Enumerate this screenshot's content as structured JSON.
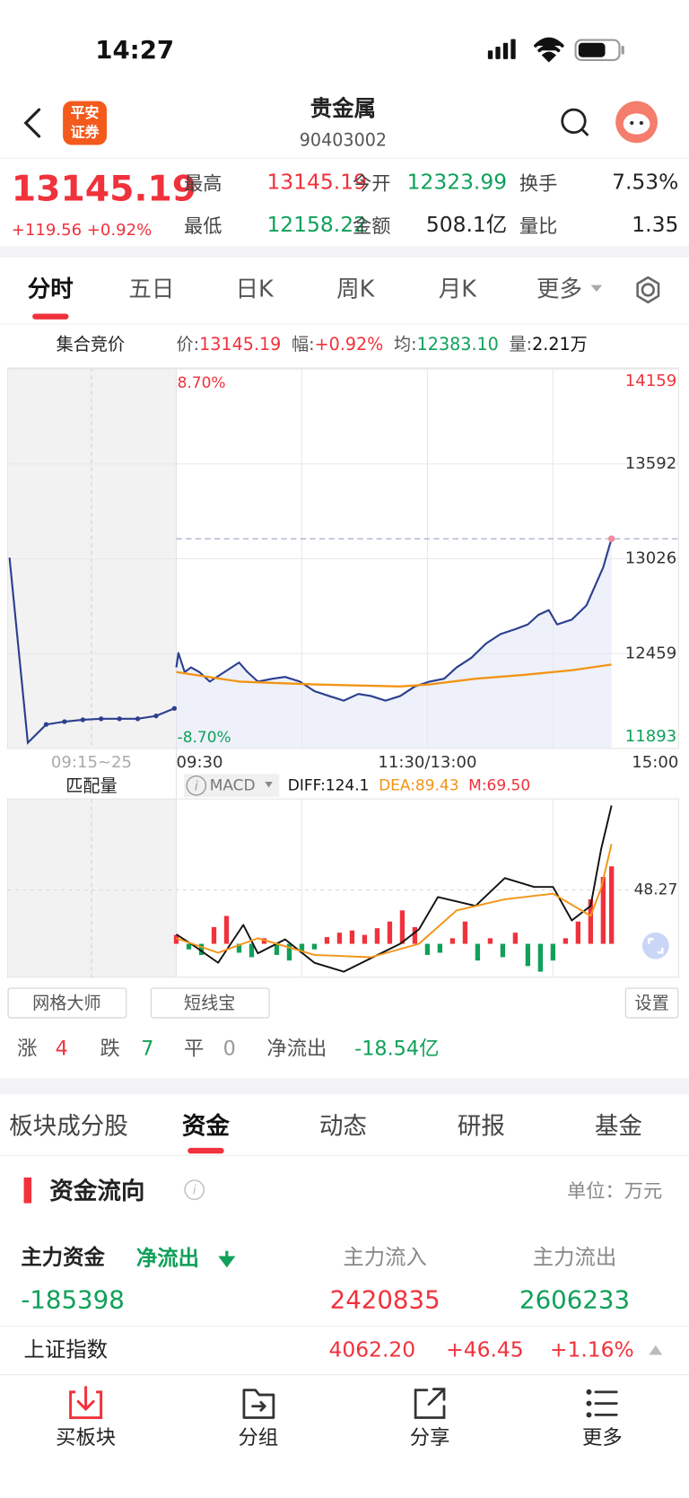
{
  "status": {
    "time": "14:27"
  },
  "header": {
    "logo": [
      "平安",
      "证券"
    ],
    "title": "贵金属",
    "code": "90403002"
  },
  "quote": {
    "price": "13145.19",
    "change": "+119.56 +0.92%",
    "fields": [
      {
        "label": "最高",
        "value": "13145.19"
      },
      {
        "label": "今开",
        "value": "12323.99"
      },
      {
        "label": "换手",
        "value": "7.53%"
      },
      {
        "label": "最低",
        "value": "12158.22"
      },
      {
        "label": "金额",
        "value": "508.1亿"
      },
      {
        "label": "量比",
        "value": "1.35"
      }
    ]
  },
  "tabs": {
    "items": [
      "分时",
      "五日",
      "日K",
      "周K",
      "月K",
      "更多"
    ],
    "active": 0
  },
  "info": {
    "title": "集合竞价",
    "items": [
      {
        "label": "价:",
        "value": "13145.19"
      },
      {
        "label": "幅:",
        "value": "+0.92%"
      },
      {
        "label": "均:",
        "value": "12383.10"
      },
      {
        "label": "量:",
        "value": "2.21万"
      }
    ]
  },
  "chart_data": [
    {
      "type": "line",
      "xlim": [
        0,
        240
      ],
      "ylim": [
        11893,
        14159
      ],
      "yticks": [
        14159,
        13592,
        13026,
        12459,
        11893
      ],
      "xticks": [
        {
          "value": 0,
          "label": "09:30"
        },
        {
          "value": 120,
          "label": "11:30/13:00"
        },
        {
          "value": 240,
          "label": "15:00"
        }
      ],
      "range_labels": [
        "8.70%",
        "-8.70%"
      ],
      "last_price": 13145.19,
      "premarket": {
        "label": "09:15~25",
        "color": "#2b3f8f",
        "values": [
          13032,
          11927,
          12036,
          12053,
          12064,
          12070,
          12070,
          12070,
          12087,
          12132
        ]
      },
      "series": [
        {
          "color": "#2b3f8f",
          "fill": "#eef1fa",
          "x": [
            0,
            1,
            4,
            7,
            11,
            16,
            23,
            30,
            34,
            39,
            46,
            52,
            59,
            66,
            73,
            80,
            87,
            93,
            100,
            107,
            114,
            121,
            128,
            134,
            141,
            148,
            155,
            162,
            168,
            173,
            178,
            182,
            189,
            196,
            200,
            204,
            206,
            208
          ],
          "values": [
            12377,
            12463,
            12349,
            12377,
            12349,
            12292,
            12349,
            12406,
            12349,
            12292,
            12309,
            12320,
            12292,
            12235,
            12206,
            12178,
            12218,
            12206,
            12178,
            12206,
            12263,
            12292,
            12309,
            12377,
            12434,
            12519,
            12576,
            12605,
            12633,
            12690,
            12719,
            12633,
            12662,
            12747,
            12861,
            12975,
            13060,
            13145.19
          ]
        },
        {
          "color": "#f39415",
          "x": [
            0,
            30,
            66,
            107,
            121,
            143,
            166,
            189,
            208
          ],
          "values": [
            12349,
            12292,
            12275,
            12263,
            12275,
            12309,
            12332,
            12360,
            12394
          ]
        }
      ]
    },
    {
      "type": "macd",
      "title": "匹配量",
      "indicator": "MACD",
      "labels": [
        "DIFF:124.1",
        "DEA:89.43",
        "M:69.50"
      ],
      "xlim": [
        0,
        240
      ],
      "ylim": [
        -30,
        130
      ],
      "yticks": [
        48.27
      ],
      "series": [
        {
          "color": "#111111",
          "x": [
            0,
            7,
            20,
            32,
            39,
            52,
            66,
            80,
            93,
            107,
            116,
            125,
            134,
            143,
            157,
            171,
            180,
            189,
            198,
            203,
            208
          ],
          "values": [
            8.5,
            0,
            -17,
            17,
            -8.5,
            4,
            -17,
            -25,
            -13,
            0,
            13,
            42,
            38,
            34,
            59,
            51,
            51,
            21,
            34,
            85,
            124.1
          ]
        },
        {
          "color": "#f39415",
          "x": [
            0,
            20,
            39,
            66,
            93,
            116,
            134,
            157,
            180,
            198,
            203,
            208
          ],
          "values": [
            5,
            -8,
            5,
            -10,
            -12,
            0,
            30,
            40,
            45,
            25,
            50,
            89.43
          ]
        }
      ],
      "bars": {
        "up_color": "#f0323c",
        "down_color": "#10a05a",
        "x": [
          0,
          6,
          12,
          18,
          24,
          30,
          36,
          42,
          48,
          54,
          60,
          66,
          72,
          78,
          84,
          90,
          96,
          102,
          108,
          114,
          120,
          126,
          132,
          138,
          144,
          150,
          156,
          162,
          168,
          174,
          180,
          186,
          192,
          198,
          204,
          208
        ],
        "values": [
          8,
          -5,
          -10,
          15,
          25,
          -8,
          -12,
          5,
          -10,
          -15,
          -8,
          -5,
          6,
          10,
          12,
          8,
          14,
          20,
          30,
          15,
          -10,
          -8,
          5,
          20,
          -15,
          5,
          -12,
          10,
          -20,
          -25,
          -15,
          5,
          20,
          40,
          60,
          69.5
        ]
      }
    }
  ],
  "tools": [
    "网格大师",
    "短线宝",
    "设置"
  ],
  "breadth": [
    {
      "label": "涨",
      "value": "4"
    },
    {
      "label": "跌",
      "value": "7"
    },
    {
      "label": "平",
      "value": "0"
    },
    {
      "label": "净流出",
      "value": "-18.54亿"
    }
  ],
  "section_tabs": {
    "items": [
      "板块成分股",
      "资金",
      "动态",
      "研报",
      "基金"
    ],
    "active": 1
  },
  "fund_flow": {
    "title": "资金流向",
    "unit": "单位：万元",
    "main": {
      "label": "主力资金",
      "status": "净流出",
      "value": "-185398"
    },
    "inflow": {
      "label": "主力流入",
      "value": "2420835"
    },
    "outflow": {
      "label": "主力流出",
      "value": "2606233"
    }
  },
  "index_row": {
    "name": "上证指数",
    "price": "4062.20",
    "change": "+46.45",
    "pct": "+1.16%"
  },
  "bottom_nav": [
    "买板块",
    "分组",
    "分享",
    "更多"
  ]
}
